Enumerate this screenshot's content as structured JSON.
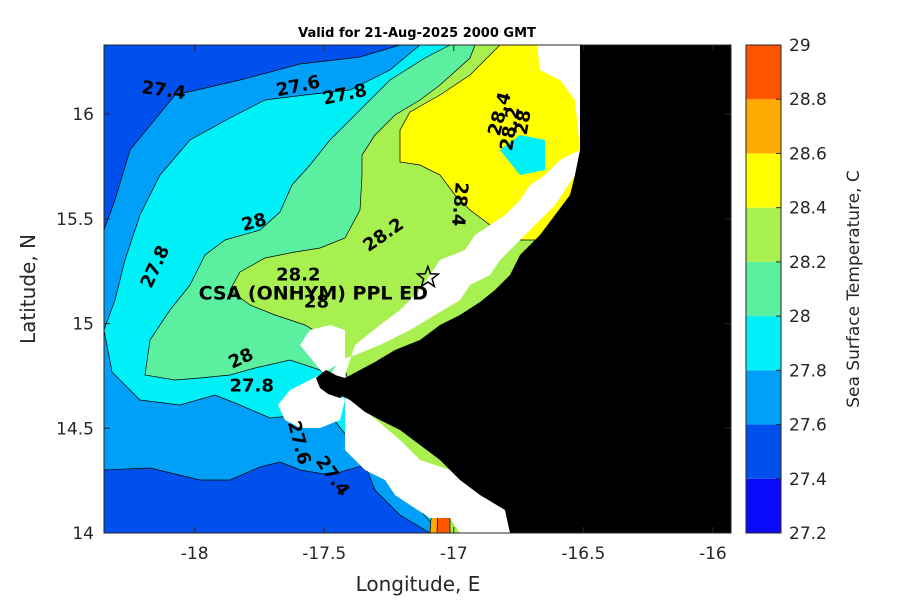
{
  "title": "Valid for 21-Aug-2025 2000 GMT",
  "site_label": "CSA (ONHYM) PPL ED",
  "chart_data": {
    "type": "contour-map",
    "xlabel": "Longitude, E",
    "ylabel": "Latitude, N",
    "xlim": [
      -18.35,
      -15.93
    ],
    "ylim": [
      14.0,
      16.33
    ],
    "xticks": [
      -18,
      -17.5,
      -17,
      -16.5,
      -16
    ],
    "xtick_labels": [
      "-18",
      "-17.5",
      "-17",
      "-16.5",
      "-16"
    ],
    "yticks": [
      14,
      14.5,
      15,
      15.5,
      16
    ],
    "ytick_labels": [
      "14",
      "14.5",
      "15",
      "15.5",
      "16"
    ],
    "site": {
      "lon": -17.1,
      "lat": 15.22,
      "marker": "star"
    },
    "colorbar": {
      "label": "Sea Surface Temperature, C",
      "levels": [
        27.2,
        27.4,
        27.6,
        27.8,
        28.0,
        28.2,
        28.4,
        28.6,
        28.8,
        29.0
      ],
      "tick_labels": [
        "27.2",
        "27.4",
        "27.6",
        "27.8",
        "28",
        "28.2",
        "28.4",
        "28.6",
        "28.8",
        "29"
      ],
      "colors": [
        "#0a0aff",
        "#0050ee",
        "#00a0f8",
        "#00f0f8",
        "#5af0a0",
        "#a8f050",
        "#ffff00",
        "#ffaa00",
        "#ff5500"
      ]
    },
    "contour_labels": [
      {
        "text": "27.4",
        "lon": -18.12,
        "lat": 16.11,
        "angle": 8
      },
      {
        "text": "27.6",
        "lon": -17.6,
        "lat": 16.13,
        "angle": -12
      },
      {
        "text": "27.8",
        "lon": -17.42,
        "lat": 16.09,
        "angle": -12
      },
      {
        "text": "28.4",
        "lon": -16.82,
        "lat": 16.0,
        "angle": -75
      },
      {
        "text": "28.2",
        "lon": -16.78,
        "lat": 15.93,
        "angle": -80
      },
      {
        "text": "28",
        "lon": -16.73,
        "lat": 15.96,
        "angle": -80
      },
      {
        "text": "28.4",
        "lon": -16.98,
        "lat": 15.57,
        "angle": 95
      },
      {
        "text": "28",
        "lon": -17.77,
        "lat": 15.48,
        "angle": -15
      },
      {
        "text": "28.2",
        "lon": -17.27,
        "lat": 15.42,
        "angle": -35
      },
      {
        "text": "27.8",
        "lon": -18.15,
        "lat": 15.27,
        "angle": -65
      },
      {
        "text": "28.2",
        "lon": -17.6,
        "lat": 15.23,
        "angle": 0
      },
      {
        "text": "28",
        "lon": -17.53,
        "lat": 15.1,
        "angle": 0
      },
      {
        "text": "28",
        "lon": -17.82,
        "lat": 14.83,
        "angle": -25
      },
      {
        "text": "27.8",
        "lon": -17.78,
        "lat": 14.7,
        "angle": 0
      },
      {
        "text": "27.6",
        "lon": -17.6,
        "lat": 14.43,
        "angle": 75
      },
      {
        "text": "27.4",
        "lon": -17.47,
        "lat": 14.27,
        "angle": 55
      }
    ]
  }
}
